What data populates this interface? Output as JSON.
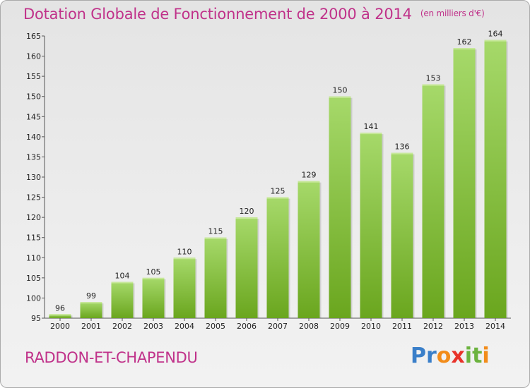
{
  "title": "Dotation Globale de Fonctionnement de 2000 à 2014",
  "unit_note": "(en milliers d'€)",
  "commune": "RADDON-ET-CHAPENDU",
  "logo": {
    "letters": [
      "P",
      "r",
      "o",
      "x",
      "i",
      "t",
      "i"
    ],
    "colors": [
      "#3a7fc9",
      "#3a7fc9",
      "#f28c1a",
      "#e8322a",
      "#6cb33f",
      "#6cb33f",
      "#f28c1a"
    ]
  },
  "colors": {
    "title": "#c0328a",
    "bar_light": "#a6d96a",
    "bar_dark": "#6aa61e"
  },
  "chart_data": {
    "type": "bar",
    "categories": [
      "2000",
      "2001",
      "2002",
      "2003",
      "2004",
      "2005",
      "2006",
      "2007",
      "2008",
      "2009",
      "2010",
      "2011",
      "2012",
      "2013",
      "2014"
    ],
    "values": [
      96,
      99,
      104,
      105,
      110,
      115,
      120,
      125,
      129,
      150,
      141,
      136,
      153,
      162,
      164
    ],
    "title": "Dotation Globale de Fonctionnement de 2000 à 2014",
    "ylim": [
      95,
      165
    ],
    "yticks": [
      95,
      100,
      105,
      110,
      115,
      120,
      125,
      130,
      135,
      140,
      145,
      150,
      155,
      160,
      165
    ],
    "grid": false,
    "legend": "none"
  }
}
